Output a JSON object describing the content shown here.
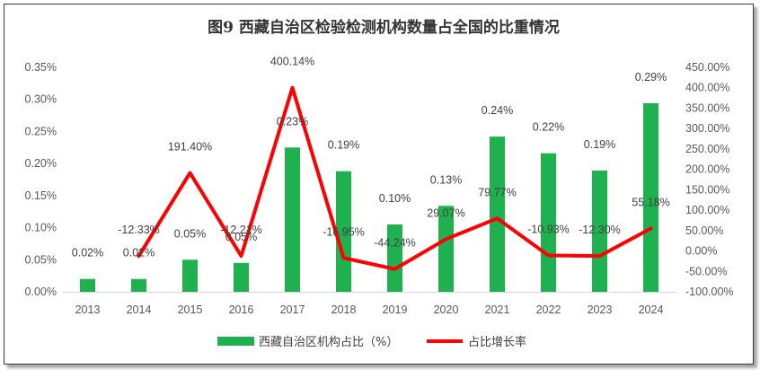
{
  "chart_data": {
    "type": "bar",
    "title": "图9 西藏自治区检验检测机构数量占全国的比重情况",
    "categories": [
      "2013",
      "2014",
      "2015",
      "2016",
      "2017",
      "2018",
      "2019",
      "2020",
      "2021",
      "2022",
      "2023",
      "2024"
    ],
    "series": [
      {
        "name": "西藏自治区机构占比（%）",
        "type": "bar",
        "axis": "left",
        "color": "#1fb150",
        "values": [
          0.02,
          0.02,
          0.05,
          0.045,
          0.225,
          0.188,
          0.105,
          0.134,
          0.242,
          0.216,
          0.189,
          0.294
        ],
        "labels": [
          "0.02%",
          "0.02%",
          "0.05%",
          "0.05%",
          "0.23%",
          "0.19%",
          "0.10%",
          "0.13%",
          "0.24%",
          "0.22%",
          "0.19%",
          "0.29%"
        ]
      },
      {
        "name": "占比增长率",
        "type": "line",
        "axis": "right",
        "color": "#ff0000",
        "values": [
          null,
          -12.33,
          191.4,
          -12.21,
          400.14,
          -16.95,
          -44.24,
          29.07,
          79.77,
          -10.93,
          -12.3,
          55.18
        ],
        "labels": [
          "",
          "-12.33%",
          "191.40%",
          "-12.21%",
          "400.14%",
          "-16.95%",
          "-44.24%",
          "29.07%",
          "79.77%",
          "-10.93%",
          "-12.30%",
          "55.18%"
        ]
      }
    ],
    "y_left": {
      "min": 0,
      "max": 0.35,
      "step": 0.05,
      "ticks": [
        "0.00%",
        "0.05%",
        "0.10%",
        "0.15%",
        "0.20%",
        "0.25%",
        "0.30%",
        "0.35%"
      ]
    },
    "y_right": {
      "min": -100,
      "max": 450,
      "step": 50,
      "ticks": [
        "-100.00%",
        "-50.00%",
        "0.00%",
        "50.00%",
        "100.00%",
        "150.00%",
        "200.00%",
        "250.00%",
        "300.00%",
        "350.00%",
        "400.00%",
        "450.00%"
      ]
    },
    "legend": {
      "position": "bottom"
    },
    "grid": false
  }
}
